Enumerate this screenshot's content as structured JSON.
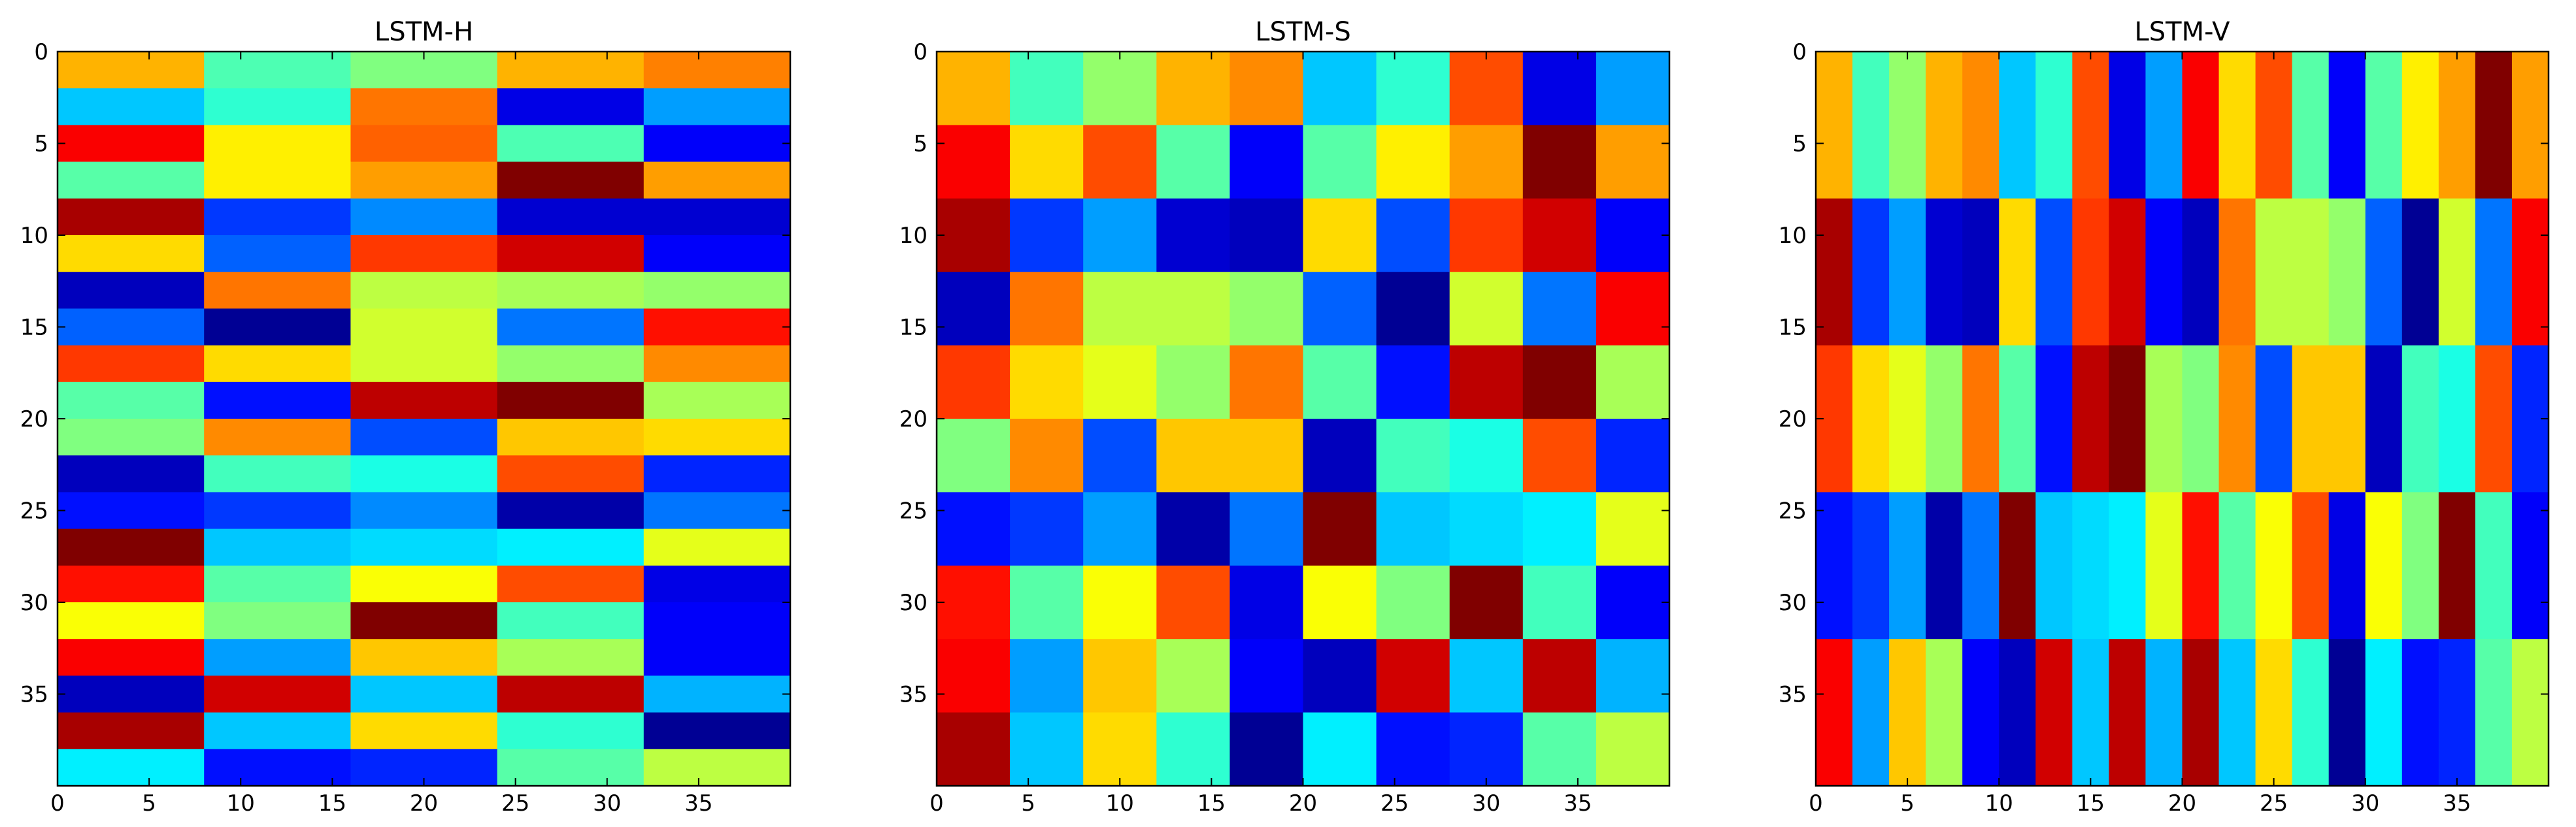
{
  "chart_data": [
    {
      "type": "heatmap",
      "title": "LSTM-H",
      "colormap": "jet",
      "xlabel": "",
      "ylabel": "",
      "xlim": [
        0,
        40
      ],
      "ylim": [
        40,
        0
      ],
      "xticks": [
        0,
        5,
        10,
        15,
        20,
        25,
        30,
        35
      ],
      "yticks": [
        0,
        5,
        10,
        15,
        20,
        25,
        30,
        35
      ],
      "grid": false,
      "col_edges": [
        0,
        8,
        16,
        24,
        32,
        40
      ],
      "row_edges": [
        0,
        2,
        4,
        6,
        8,
        10,
        12,
        14,
        16,
        18,
        20,
        22,
        24,
        26,
        28,
        30,
        32,
        34,
        36,
        38,
        40
      ],
      "values": [
        [
          0.7,
          0.45,
          0.5,
          0.7,
          0.75
        ],
        [
          0.32,
          0.42,
          0.76,
          0.1,
          0.28
        ],
        [
          0.88,
          0.64,
          0.78,
          0.45,
          0.12
        ],
        [
          0.46,
          0.64,
          0.72,
          1.0,
          0.72
        ],
        [
          0.96,
          0.18,
          0.26,
          0.08,
          0.08
        ],
        [
          0.66,
          0.22,
          0.82,
          0.92,
          0.12
        ],
        [
          0.06,
          0.76,
          0.56,
          0.54,
          0.52
        ],
        [
          0.22,
          0.02,
          0.58,
          0.24,
          0.86
        ],
        [
          0.82,
          0.66,
          0.58,
          0.52,
          0.74
        ],
        [
          0.46,
          0.14,
          0.94,
          1.0,
          0.54
        ],
        [
          0.5,
          0.74,
          0.2,
          0.68,
          0.66
        ],
        [
          0.06,
          0.44,
          0.4,
          0.8,
          0.16
        ],
        [
          0.14,
          0.18,
          0.26,
          0.04,
          0.24
        ],
        [
          1.0,
          0.32,
          0.34,
          0.36,
          0.6
        ],
        [
          0.86,
          0.46,
          0.62,
          0.8,
          0.1
        ],
        [
          0.62,
          0.5,
          1.0,
          0.44,
          0.12
        ],
        [
          0.88,
          0.28,
          0.68,
          0.54,
          0.12
        ],
        [
          0.06,
          0.92,
          0.32,
          0.94,
          0.3
        ],
        [
          0.96,
          0.32,
          0.66,
          0.42,
          0.02
        ],
        [
          0.36,
          0.14,
          0.16,
          0.46,
          0.56
        ]
      ]
    },
    {
      "type": "heatmap",
      "title": "LSTM-S",
      "colormap": "jet",
      "xlabel": "",
      "ylabel": "",
      "xlim": [
        0,
        40
      ],
      "ylim": [
        40,
        0
      ],
      "xticks": [
        0,
        5,
        10,
        15,
        20,
        25,
        30,
        35
      ],
      "yticks": [
        0,
        5,
        10,
        15,
        20,
        25,
        30,
        35
      ],
      "grid": false,
      "col_edges": [
        0,
        4,
        8,
        12,
        16,
        20,
        24,
        28,
        32,
        36,
        40
      ],
      "row_edges": [
        0,
        4,
        8,
        12,
        16,
        20,
        24,
        28,
        32,
        36,
        40
      ],
      "values": [
        [
          0.7,
          0.44,
          0.52,
          0.7,
          0.74,
          0.32,
          0.42,
          0.8,
          0.1,
          0.28
        ],
        [
          0.88,
          0.66,
          0.8,
          0.46,
          0.12,
          0.46,
          0.64,
          0.72,
          1.0,
          0.72
        ],
        [
          0.96,
          0.18,
          0.28,
          0.08,
          0.06,
          0.66,
          0.2,
          0.82,
          0.92,
          0.12
        ],
        [
          0.06,
          0.76,
          0.56,
          0.56,
          0.52,
          0.22,
          0.02,
          0.58,
          0.24,
          0.88
        ],
        [
          0.82,
          0.66,
          0.6,
          0.52,
          0.76,
          0.46,
          0.14,
          0.94,
          1.0,
          0.54
        ],
        [
          0.5,
          0.74,
          0.2,
          0.68,
          0.68,
          0.06,
          0.44,
          0.4,
          0.8,
          0.16
        ],
        [
          0.14,
          0.18,
          0.28,
          0.04,
          0.24,
          1.0,
          0.32,
          0.34,
          0.36,
          0.6
        ],
        [
          0.86,
          0.46,
          0.62,
          0.8,
          0.1,
          0.62,
          0.5,
          1.0,
          0.44,
          0.12
        ],
        [
          0.88,
          0.28,
          0.68,
          0.54,
          0.12,
          0.06,
          0.92,
          0.32,
          0.94,
          0.3
        ],
        [
          0.96,
          0.32,
          0.66,
          0.42,
          0.02,
          0.36,
          0.14,
          0.16,
          0.46,
          0.56
        ]
      ]
    },
    {
      "type": "heatmap",
      "title": "LSTM-V",
      "colormap": "jet",
      "xlabel": "",
      "ylabel": "",
      "xlim": [
        0,
        40
      ],
      "ylim": [
        40,
        0
      ],
      "xticks": [
        0,
        5,
        10,
        15,
        20,
        25,
        30,
        35
      ],
      "yticks": [
        0,
        5,
        10,
        15,
        20,
        25,
        30,
        35
      ],
      "grid": false,
      "col_edges": [
        0,
        2,
        4,
        6,
        8,
        10,
        12,
        14,
        16,
        18,
        20,
        22,
        24,
        26,
        28,
        30,
        32,
        34,
        36,
        38,
        40
      ],
      "row_edges": [
        0,
        8,
        16,
        24,
        32,
        40
      ],
      "values": [
        [
          0.7,
          0.44,
          0.52,
          0.7,
          0.74,
          0.32,
          0.42,
          0.8,
          0.1,
          0.28,
          0.88,
          0.66,
          0.8,
          0.46,
          0.12,
          0.46,
          0.64,
          0.72,
          1.0,
          0.72
        ],
        [
          0.96,
          0.18,
          0.28,
          0.08,
          0.06,
          0.66,
          0.2,
          0.82,
          0.92,
          0.12,
          0.06,
          0.76,
          0.56,
          0.56,
          0.52,
          0.22,
          0.02,
          0.58,
          0.24,
          0.88
        ],
        [
          0.82,
          0.66,
          0.6,
          0.52,
          0.76,
          0.46,
          0.14,
          0.94,
          1.0,
          0.54,
          0.5,
          0.74,
          0.2,
          0.68,
          0.68,
          0.06,
          0.44,
          0.4,
          0.8,
          0.16
        ],
        [
          0.14,
          0.18,
          0.28,
          0.04,
          0.24,
          1.0,
          0.32,
          0.34,
          0.36,
          0.6,
          0.86,
          0.46,
          0.62,
          0.8,
          0.1,
          0.62,
          0.5,
          1.0,
          0.44,
          0.12
        ],
        [
          0.88,
          0.28,
          0.68,
          0.54,
          0.12,
          0.06,
          0.92,
          0.32,
          0.94,
          0.3,
          0.96,
          0.32,
          0.66,
          0.42,
          0.02,
          0.36,
          0.14,
          0.16,
          0.46,
          0.56
        ]
      ]
    }
  ]
}
